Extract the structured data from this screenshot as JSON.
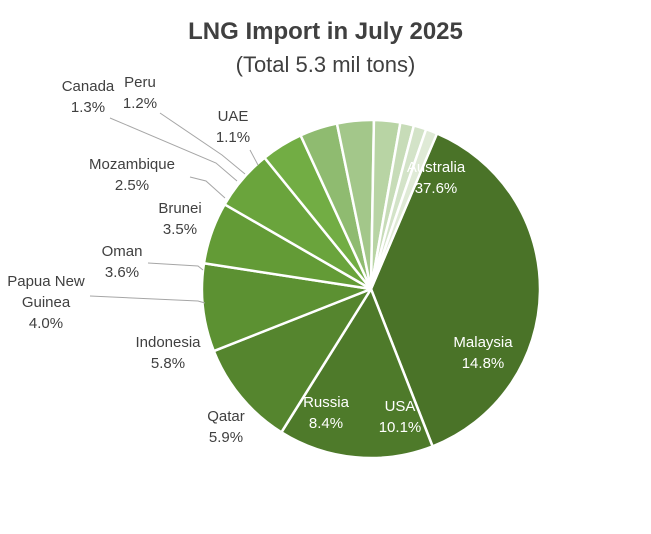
{
  "chart_data": {
    "type": "pie",
    "title": "LNG Import in July 2025",
    "subtitle": "(Total 5.3 mil tons)",
    "slices": [
      {
        "name": "Australia",
        "label": "37.6%",
        "value": 37.6,
        "color": "#4a7328",
        "text_color": "#ffffff"
      },
      {
        "name": "Malaysia",
        "label": "14.8%",
        "value": 14.8,
        "color": "#4e7a2a",
        "text_color": "#ffffff"
      },
      {
        "name": "USA",
        "label": "10.1%",
        "value": 10.1,
        "color": "#55852e",
        "text_color": "#ffffff"
      },
      {
        "name": "Russia",
        "label": "8.4%",
        "value": 8.4,
        "color": "#5c9132",
        "text_color": "#ffffff"
      },
      {
        "name": "Qatar",
        "label": "5.9%",
        "value": 5.9,
        "color": "#639b36",
        "text_color": "#404040"
      },
      {
        "name": "Indonesia",
        "label": "5.8%",
        "value": 5.8,
        "color": "#6aa43c",
        "text_color": "#404040"
      },
      {
        "name": "Papua New\nGuinea",
        "label": "4.0%",
        "value": 4.0,
        "color": "#72ad44",
        "text_color": "#404040"
      },
      {
        "name": "Oman",
        "label": "3.6%",
        "value": 3.6,
        "color": "#8fbb70",
        "text_color": "#404040"
      },
      {
        "name": "Brunei",
        "label": "3.5%",
        "value": 3.5,
        "color": "#a3c78a",
        "text_color": "#404040"
      },
      {
        "name": "Mozambique",
        "label": "2.5%",
        "value": 2.5,
        "color": "#b8d4a4",
        "text_color": "#404040"
      },
      {
        "name": "Canada",
        "label": "1.3%",
        "value": 1.3,
        "color": "#c7dcb8",
        "text_color": "#404040"
      },
      {
        "name": "Peru",
        "label": "1.2%",
        "value": 1.2,
        "color": "#d3e3c8",
        "text_color": "#404040"
      },
      {
        "name": "UAE",
        "label": "1.1%",
        "value": 1.1,
        "color": "#dfead6",
        "text_color": "#404040"
      }
    ],
    "legend": "none",
    "label_style": "category name and percentage, with leader lines for small slices"
  }
}
